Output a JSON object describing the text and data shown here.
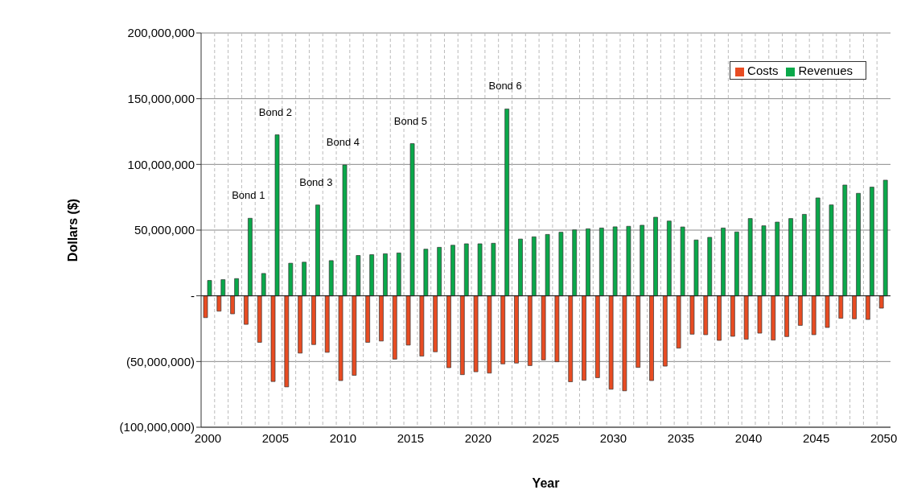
{
  "chart_data": {
    "type": "bar",
    "xlabel": "Year",
    "ylabel": "Dollars ($)",
    "categories": [
      "2000",
      null,
      null,
      null,
      null,
      "2005",
      null,
      null,
      null,
      null,
      "2010",
      null,
      null,
      null,
      null,
      "2015",
      null,
      null,
      null,
      null,
      "2020",
      null,
      null,
      null,
      null,
      "2025",
      null,
      null,
      null,
      null,
      "2030",
      null,
      null,
      null,
      null,
      "2035",
      null,
      null,
      null,
      null,
      "2040",
      null,
      null,
      null,
      null,
      "2045",
      null,
      null,
      null,
      null,
      "2050"
    ],
    "series": [
      {
        "name": "Costs",
        "color": "#e84c22",
        "values": [
          -16600000,
          -11700000,
          -13700000,
          -21700000,
          -35400000,
          -65200000,
          -69300000,
          -43600000,
          -37100000,
          -43000000,
          -64500000,
          -60500000,
          -35400000,
          -34400000,
          -48200000,
          -37500000,
          -45900000,
          -42600000,
          -54700000,
          -60000000,
          -57800000,
          -58800000,
          -51800000,
          -51200000,
          -53100000,
          -48800000,
          -50200000,
          -65400000,
          -64300000,
          -62300000,
          -71100000,
          -72300000,
          -54500000,
          -64500000,
          -53500000,
          -39800000,
          -29200000,
          -29600000,
          -33900000,
          -30800000,
          -33100000,
          -28400000,
          -33700000,
          -31000000,
          -22500000,
          -29600000,
          -24100000,
          -17100000,
          -17500000,
          -18000000,
          -9400000
        ]
      },
      {
        "name": "Revenues",
        "color": "#0aa84a",
        "values": [
          11700000,
          12300000,
          13100000,
          59000000,
          17000000,
          122500000,
          24800000,
          25600000,
          69100000,
          26800000,
          99600000,
          30700000,
          31300000,
          32000000,
          32600000,
          115800000,
          35500000,
          36900000,
          38500000,
          39600000,
          39600000,
          40000000,
          142200000,
          43200000,
          44900000,
          46700000,
          48400000,
          50200000,
          51000000,
          51600000,
          52500000,
          52900000,
          53700000,
          59800000,
          56900000,
          52400000,
          42500000,
          44500000,
          51600000,
          48600000,
          58800000,
          53300000,
          56100000,
          58800000,
          62000000,
          74500000,
          69200000,
          84300000,
          78000000,
          82700000,
          88000000
        ]
      }
    ],
    "ylim": [
      -100000000,
      200000000
    ],
    "yticks": [
      {
        "value": -100000000,
        "label": "(100,000,000)"
      },
      {
        "value": -50000000,
        "label": "(50,000,000)"
      },
      {
        "value": 0,
        "label": "-"
      },
      {
        "value": 50000000,
        "label": "50,000,000"
      },
      {
        "value": 100000000,
        "label": "100,000,000"
      },
      {
        "value": 150000000,
        "label": "150,000,000"
      },
      {
        "value": 200000000,
        "label": "200,000,000"
      }
    ],
    "annotations": [
      {
        "text": "Bond 1",
        "y": 59000000
      },
      {
        "text": "Bond 2",
        "x": "2005",
        "y": 122500000
      },
      {
        "text": "Bond 3",
        "y": 69100000
      },
      {
        "text": "Bond 4",
        "x": "2010",
        "y": 99600000
      },
      {
        "text": "Bond 5",
        "x": "2015",
        "y": 115800000
      },
      {
        "text": "Bond 6",
        "y": 142200000
      }
    ],
    "grid": true,
    "legend": "top right"
  }
}
